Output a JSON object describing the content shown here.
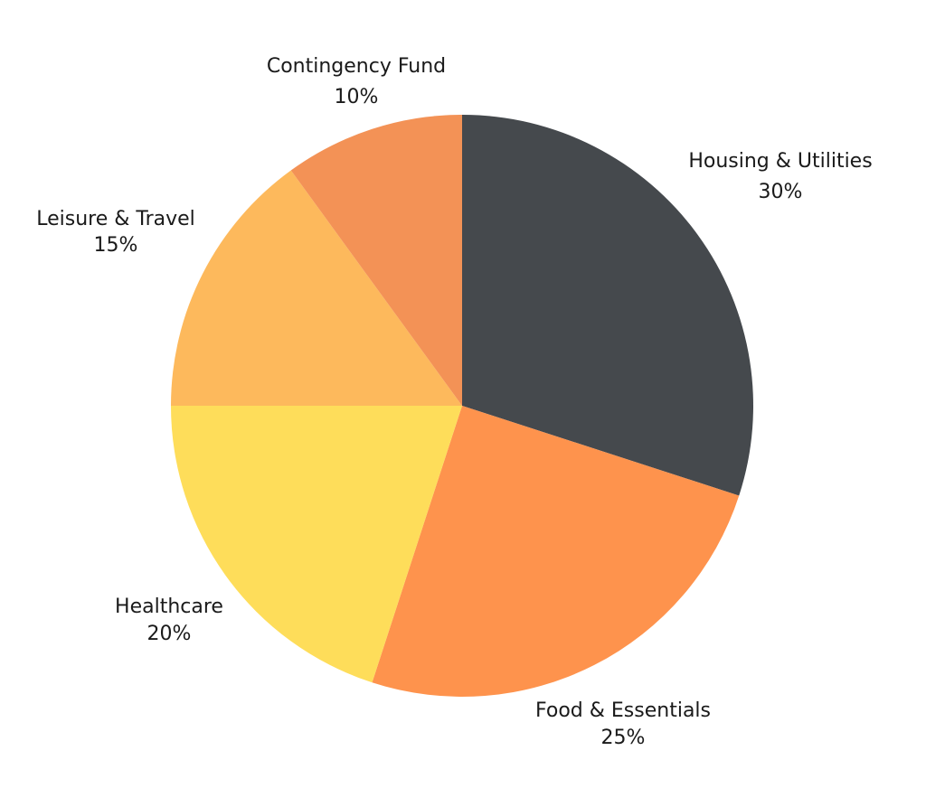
{
  "chart_data": {
    "type": "pie",
    "title": "",
    "unit": "%",
    "slices": [
      {
        "label": "Housing & Utilities",
        "value": 30,
        "value_label": "30%",
        "color": "#45494d"
      },
      {
        "label": "Food & Essentials",
        "value": 25,
        "value_label": "25%",
        "color": "#fe934d"
      },
      {
        "label": "Healthcare",
        "value": 20,
        "value_label": "20%",
        "color": "#fedd5a"
      },
      {
        "label": "Leisure & Travel",
        "value": 15,
        "value_label": "15%",
        "color": "#fdb95c"
      },
      {
        "label": "Contingency Fund",
        "value": 10,
        "value_label": "10%",
        "color": "#f39256"
      }
    ],
    "start": "12 o'clock",
    "direction": "clockwise",
    "legend": "none"
  }
}
